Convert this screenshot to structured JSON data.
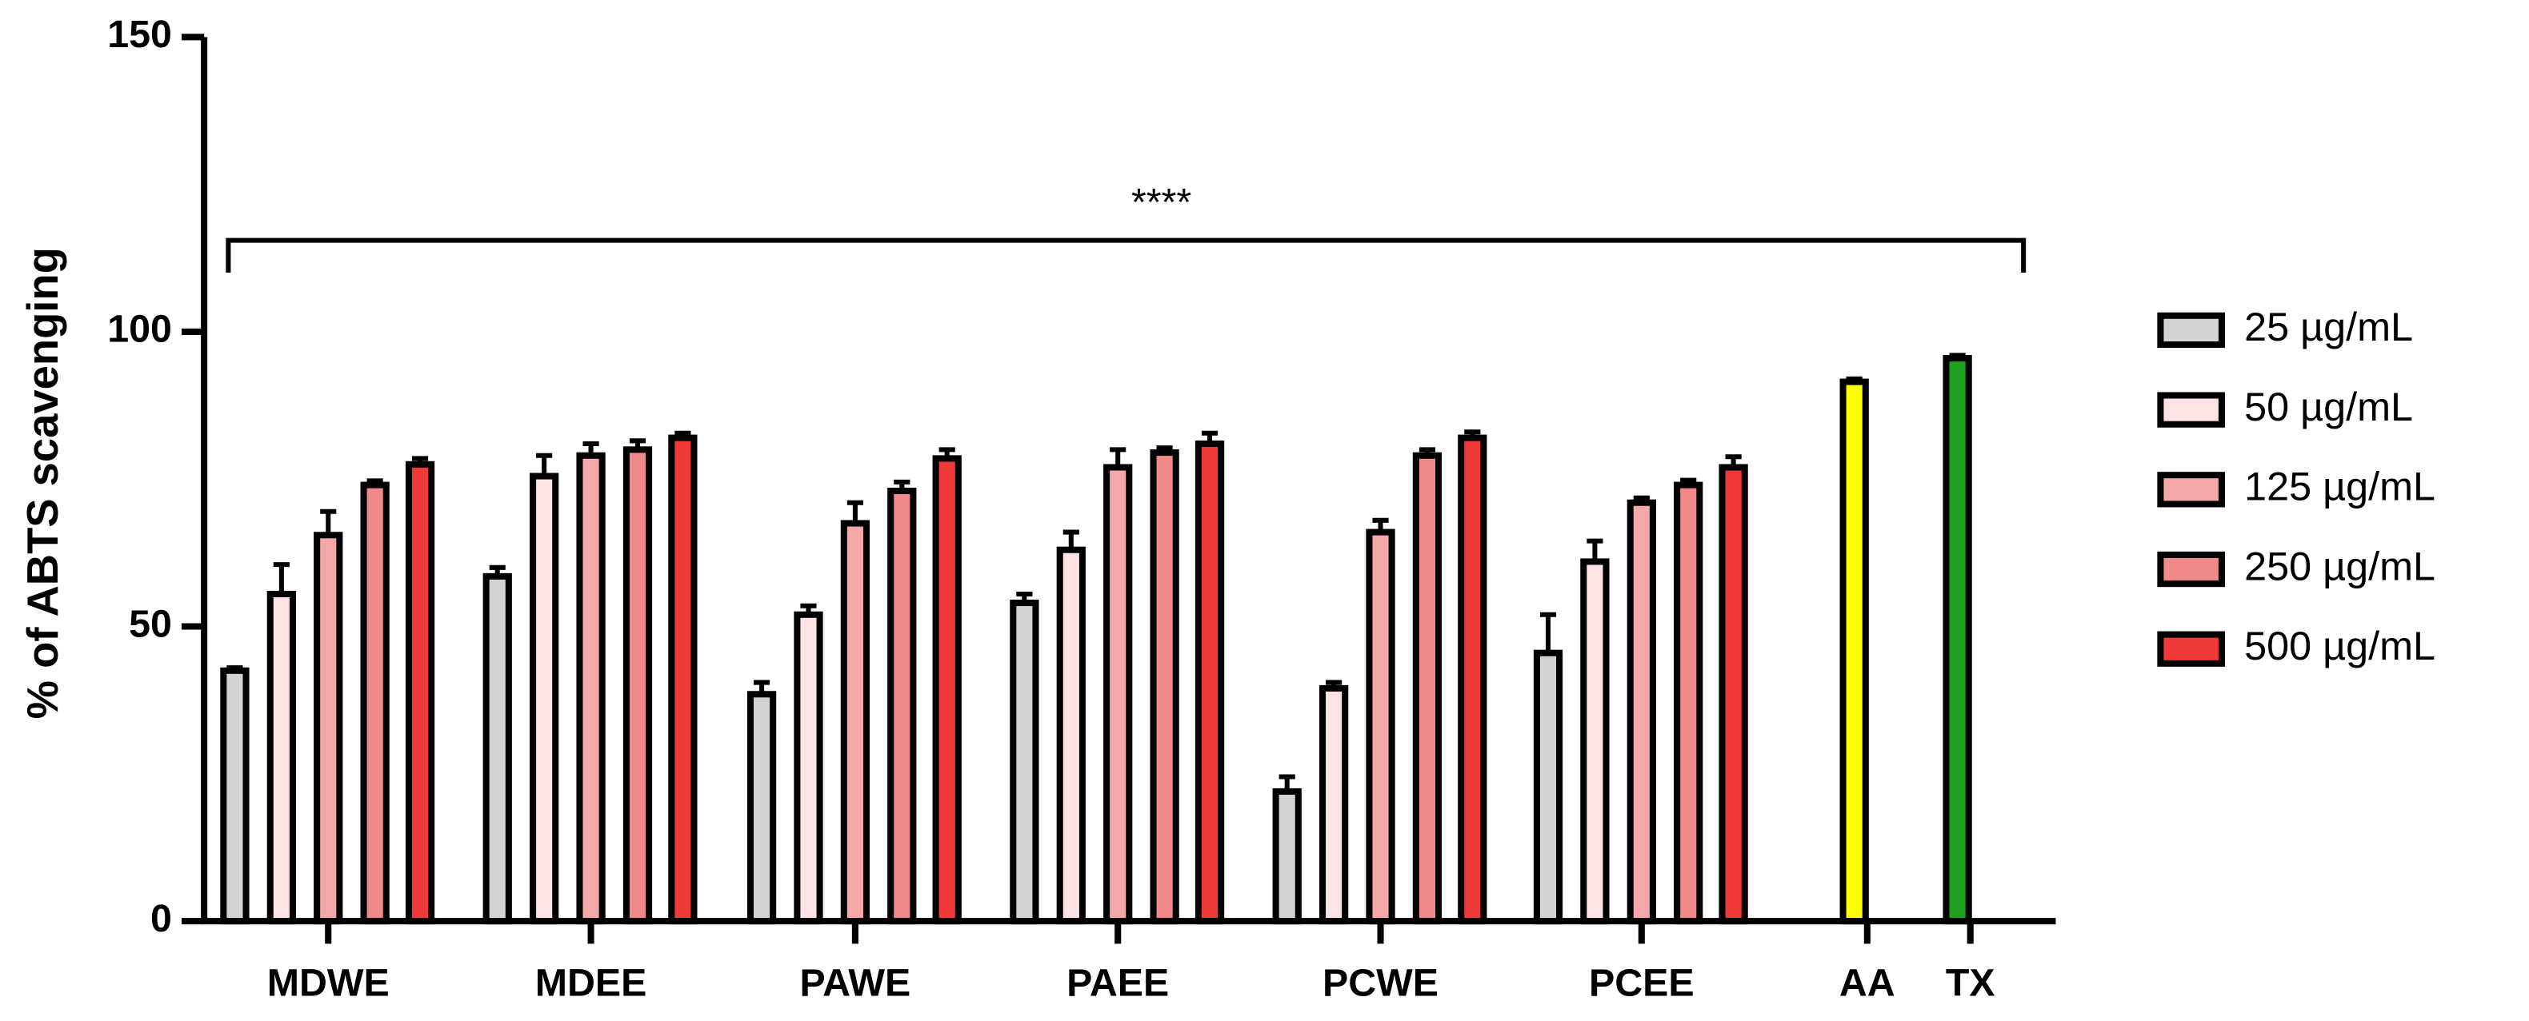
{
  "chart_data": {
    "type": "bar",
    "y_label": "% of ABTS scavenging",
    "categories": [
      "MDWE",
      "MDEE",
      "PAWE",
      "PAEE",
      "PCWE",
      "PCEE",
      "AA",
      "TX"
    ],
    "series": [
      {
        "name": "25 µg/mL",
        "color": "#d3d3d3",
        "values": [
          42.5,
          58.5,
          38.5,
          54,
          22,
          45.5,
          null,
          null
        ],
        "errors": [
          0.5,
          1.5,
          2,
          1.5,
          2.5,
          6.5,
          null,
          null
        ]
      },
      {
        "name": "50 µg/mL",
        "color": "#fde3e3",
        "values": [
          55.5,
          75.5,
          52,
          63,
          39.5,
          61,
          null,
          null
        ],
        "errors": [
          5,
          3.5,
          1.5,
          3,
          1,
          3.5,
          null,
          null
        ]
      },
      {
        "name": "125 µg/mL",
        "color": "#f4a8a8",
        "values": [
          65.5,
          79,
          67.5,
          77,
          66,
          71,
          null,
          null
        ],
        "errors": [
          4,
          2,
          3.5,
          3,
          2,
          0.8,
          null,
          null
        ]
      },
      {
        "name": "250 µg/mL",
        "color": "#f08a8a",
        "values": [
          74,
          80,
          73,
          79.5,
          79,
          74,
          null,
          null
        ],
        "errors": [
          0.7,
          1.5,
          1.5,
          0.8,
          1,
          0.8,
          null,
          null
        ]
      },
      {
        "name": "500 µg/mL",
        "color": "#f03a3a",
        "values": [
          77.5,
          82,
          78.5,
          81,
          82,
          77,
          null,
          null
        ],
        "errors": [
          1,
          0.8,
          1.5,
          1.8,
          1,
          1.8,
          null,
          null
        ]
      }
    ],
    "standard_values": [
      null,
      null,
      null,
      null,
      null,
      null,
      91.5,
      95.5
    ],
    "standard_errors": [
      null,
      null,
      null,
      null,
      null,
      null,
      0.5,
      0.5
    ],
    "standard_colors": [
      null,
      null,
      null,
      null,
      null,
      null,
      "#ffff00",
      "#1fa01f"
    ],
    "significance": {
      "label": "****",
      "value": 115.5
    },
    "ylim": [
      0,
      150
    ],
    "yticks": [
      0,
      50,
      100,
      150
    ],
    "grid": false
  }
}
